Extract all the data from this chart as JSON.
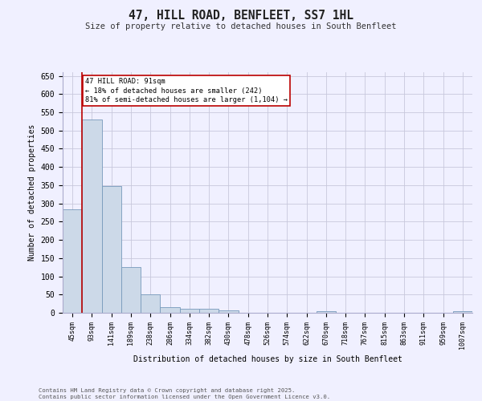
{
  "title": "47, HILL ROAD, BENFLEET, SS7 1HL",
  "subtitle": "Size of property relative to detached houses in South Benfleet",
  "xlabel": "Distribution of detached houses by size in South Benfleet",
  "ylabel": "Number of detached properties",
  "bar_color": "#ccd9e8",
  "bar_edge_color": "#7799bb",
  "vline_color": "#bb0000",
  "vline_x_index": 1,
  "annotation_text_line1": "47 HILL ROAD: 91sqm",
  "annotation_text_line2": "← 18% of detached houses are smaller (242)",
  "annotation_text_line3": "81% of semi-detached houses are larger (1,104) →",
  "annotation_box_color": "#bb0000",
  "categories": [
    "45sqm",
    "93sqm",
    "141sqm",
    "189sqm",
    "238sqm",
    "286sqm",
    "334sqm",
    "382sqm",
    "430sqm",
    "478sqm",
    "526sqm",
    "574sqm",
    "622sqm",
    "670sqm",
    "718sqm",
    "767sqm",
    "815sqm",
    "863sqm",
    "911sqm",
    "959sqm",
    "1007sqm"
  ],
  "values": [
    283,
    530,
    348,
    125,
    50,
    16,
    11,
    11,
    6,
    0,
    0,
    0,
    0,
    5,
    0,
    0,
    0,
    0,
    0,
    0,
    5
  ],
  "ylim": [
    0,
    660
  ],
  "yticks": [
    0,
    50,
    100,
    150,
    200,
    250,
    300,
    350,
    400,
    450,
    500,
    550,
    600,
    650
  ],
  "footer": "Contains HM Land Registry data © Crown copyright and database right 2025.\nContains public sector information licensed under the Open Government Licence v3.0.",
  "bg_color": "#f0f0ff",
  "grid_color": "#c8c8dc"
}
